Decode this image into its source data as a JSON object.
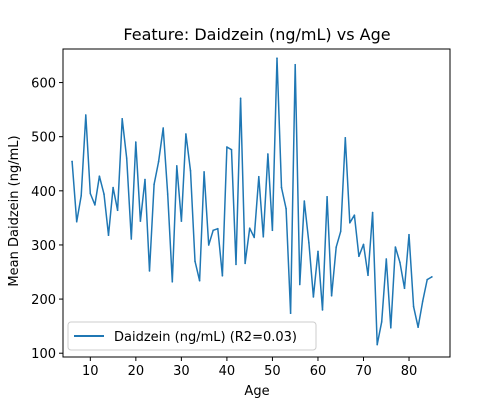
{
  "chart_data": {
    "type": "line",
    "title": "Feature: Daidzein (ng/mL) vs Age",
    "xlabel": "Age",
    "ylabel": "Mean Daidzein (ng/mL)",
    "xlim": [
      4,
      89
    ],
    "ylim": [
      93,
      662
    ],
    "xticks": [
      10,
      20,
      30,
      40,
      50,
      60,
      70,
      80
    ],
    "yticks": [
      100,
      200,
      300,
      400,
      500,
      600
    ],
    "grid": false,
    "legend_position": "lower-left",
    "series": [
      {
        "name": "Daidzein (ng/mL) (R2=0.03)",
        "color": "#1f77b4",
        "x": [
          6,
          7,
          8,
          9,
          10,
          11,
          12,
          13,
          14,
          15,
          16,
          17,
          18,
          19,
          20,
          21,
          22,
          23,
          24,
          25,
          26,
          27,
          28,
          29,
          30,
          31,
          32,
          33,
          34,
          35,
          36,
          37,
          38,
          39,
          40,
          41,
          42,
          43,
          44,
          45,
          46,
          47,
          48,
          49,
          50,
          51,
          52,
          53,
          54,
          55,
          56,
          57,
          58,
          59,
          60,
          61,
          62,
          63,
          64,
          65,
          66,
          67,
          68,
          69,
          70,
          71,
          72,
          73,
          74,
          75,
          76,
          77,
          78,
          79,
          80,
          81,
          82,
          83,
          84,
          85
        ],
        "y": [
          454,
          343,
          391,
          540,
          395,
          374,
          427,
          394,
          318,
          406,
          364,
          533,
          460,
          311,
          490,
          344,
          421,
          252,
          412,
          454,
          516,
          394,
          232,
          446,
          344,
          505,
          437,
          270,
          234,
          435,
          300,
          327,
          330,
          243,
          481,
          476,
          264,
          571,
          266,
          331,
          314,
          426,
          315,
          468,
          327,
          645,
          406,
          367,
          174,
          633,
          227,
          381,
          304,
          204,
          288,
          180,
          389,
          206,
          296,
          325,
          498,
          341,
          355,
          279,
          301,
          244,
          360,
          116,
          158,
          274,
          147,
          296,
          268,
          220,
          319,
          186,
          148,
          196,
          236,
          241
        ]
      }
    ]
  }
}
